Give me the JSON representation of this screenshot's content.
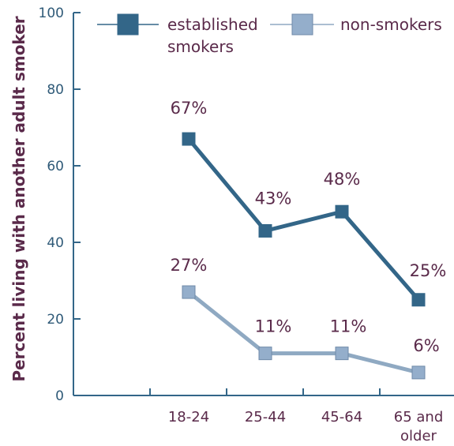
{
  "chart_data": {
    "type": "line",
    "categories": [
      "18-24",
      "25-44",
      "45-64",
      "65 and older"
    ],
    "category_lines": [
      [
        "18-24"
      ],
      [
        "25-44"
      ],
      [
        "45-64"
      ],
      [
        "65 and",
        "older"
      ]
    ],
    "ylabel": "Percent living with another adult smoker",
    "ylim": [
      0,
      100
    ],
    "yticks": [
      "0",
      "20",
      "40",
      "60",
      "80",
      "100"
    ],
    "grid": false,
    "legend_position": "top",
    "series": [
      {
        "name": "established smokers",
        "name_lines": [
          "established",
          "smokers"
        ],
        "values": [
          67,
          43,
          48,
          25
        ],
        "labels": [
          "67%",
          "43%",
          "48%",
          "25%"
        ],
        "color": "#336688",
        "marker_fill": "#336688"
      },
      {
        "name": "non-smokers",
        "name_lines": [
          "non-smokers"
        ],
        "values": [
          27,
          11,
          11,
          6
        ],
        "labels": [
          "27%",
          "11%",
          "11%",
          "6%"
        ],
        "color": "#8fa9c2",
        "marker_fill": "#94aecb"
      }
    ],
    "axis_color": "#336688"
  }
}
